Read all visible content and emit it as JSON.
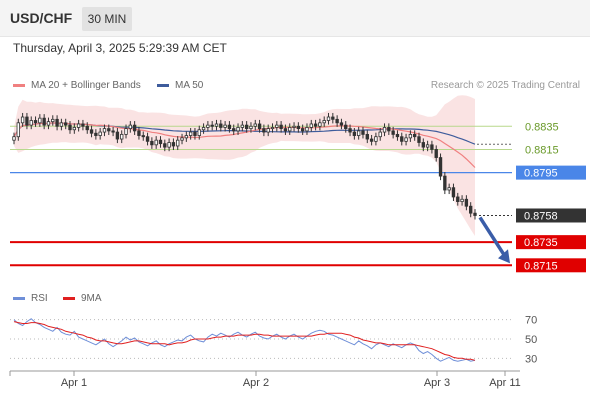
{
  "header": {
    "symbol": "USD/CHF",
    "timeframe": "30 MIN",
    "datetime": "Thursday, April 3, 2025 5:29:39 AM CET"
  },
  "legend": {
    "ma20_bb": "MA 20 + Bollinger Bands",
    "ma50": "MA 50",
    "credit": "Research © 2025 Trading Central",
    "rsi": "RSI",
    "ma9": "9MA"
  },
  "colors": {
    "bb_fill": "#f8dada",
    "ma20": "#f08080",
    "ma50": "#3e5c9c",
    "candle": "#333333",
    "blue_level": "#4a86e8",
    "red_level": "#e00000",
    "green_level": "#b8d88c",
    "arrow": "#3a5da8",
    "rsi": "#6f8fd8",
    "rsi_ma": "#e02020"
  },
  "chart_data": {
    "type": "candlestick",
    "x_ticks": [
      "Apr 1",
      "Apr 2",
      "Apr 3",
      "Apr 11"
    ],
    "price_ylim": [
      0.8698,
      0.8862
    ],
    "levels": [
      {
        "label": "0.8835",
        "value": 0.8835,
        "kind": "resistance-green"
      },
      {
        "label": "0.8815",
        "value": 0.8815,
        "kind": "resistance-green"
      },
      {
        "label": "0.8795",
        "value": 0.8795,
        "kind": "pivot-blue"
      },
      {
        "label": "0.8758",
        "value": 0.8758,
        "kind": "last-price"
      },
      {
        "label": "0.8735",
        "value": 0.8735,
        "kind": "target-red"
      },
      {
        "label": "0.8715",
        "value": 0.8715,
        "kind": "target-red"
      }
    ],
    "close_series": [
      0.8826,
      0.8838,
      0.8843,
      0.8836,
      0.884,
      0.8838,
      0.8842,
      0.8836,
      0.8839,
      0.8841,
      0.8835,
      0.8838,
      0.8836,
      0.8832,
      0.8834,
      0.8837,
      0.8835,
      0.8832,
      0.8829,
      0.8827,
      0.883,
      0.8833,
      0.8831,
      0.883,
      0.8824,
      0.8828,
      0.8833,
      0.8836,
      0.8831,
      0.8827,
      0.8826,
      0.8822,
      0.8819,
      0.8823,
      0.882,
      0.8817,
      0.8821,
      0.8818,
      0.8823,
      0.8825,
      0.8827,
      0.883,
      0.8827,
      0.8832,
      0.8834,
      0.8836,
      0.8835,
      0.8837,
      0.8834,
      0.8836,
      0.8833,
      0.8831,
      0.8834,
      0.8836,
      0.8833,
      0.8835,
      0.8837,
      0.8833,
      0.883,
      0.8833,
      0.8834,
      0.8836,
      0.8833,
      0.8831,
      0.8834,
      0.8835,
      0.8833,
      0.8831,
      0.8834,
      0.8837,
      0.8835,
      0.8838,
      0.884,
      0.8843,
      0.8841,
      0.8838,
      0.8836,
      0.8833,
      0.883,
      0.8827,
      0.8831,
      0.8828,
      0.8824,
      0.8822,
      0.8826,
      0.883,
      0.8834,
      0.8831,
      0.8828,
      0.8826,
      0.8822,
      0.8825,
      0.8828,
      0.8826,
      0.8821,
      0.8817,
      0.8819,
      0.8815,
      0.8808,
      0.8792,
      0.878,
      0.8782,
      0.8774,
      0.877,
      0.8772,
      0.8766,
      0.876,
      0.8758
    ],
    "price_x_index_range": [
      0,
      107
    ],
    "rsi": {
      "ylim": [
        20,
        80
      ],
      "ticks": [
        70,
        50,
        30
      ],
      "values": [
        70,
        66,
        64,
        68,
        71,
        67,
        65,
        62,
        60,
        58,
        62,
        57,
        55,
        54,
        58,
        52,
        50,
        48,
        46,
        44,
        47,
        50,
        45,
        42,
        45,
        48,
        52,
        49,
        51,
        47,
        45,
        43,
        46,
        48,
        44,
        42,
        45,
        47,
        49,
        48,
        52,
        54,
        50,
        48,
        47,
        52,
        55,
        53,
        56,
        54,
        52,
        55,
        57,
        54,
        52,
        55,
        57,
        53,
        51,
        50,
        53,
        55,
        52,
        50,
        53,
        55,
        52,
        50,
        53,
        56,
        58,
        59,
        58,
        55,
        54,
        52,
        50,
        48,
        46,
        44,
        48,
        45,
        43,
        40,
        44,
        46,
        44,
        42,
        45,
        43,
        41,
        44,
        46,
        44,
        38,
        35,
        37,
        34,
        30,
        27,
        29,
        31,
        28,
        27,
        28,
        29,
        27,
        28
      ],
      "ma_values": [
        68,
        67,
        66,
        66,
        67,
        67,
        66,
        65,
        63,
        62,
        61,
        60,
        58,
        57,
        56,
        55,
        54,
        52,
        51,
        49,
        48,
        48,
        47,
        46,
        45,
        45,
        46,
        47,
        48,
        48,
        47,
        46,
        45,
        45,
        45,
        45,
        44,
        45,
        46,
        46,
        47,
        49,
        50,
        50,
        50,
        50,
        51,
        52,
        52,
        53,
        53,
        53,
        54,
        54,
        54,
        54,
        55,
        55,
        54,
        54,
        53,
        53,
        53,
        53,
        53,
        53,
        53,
        53,
        53,
        53,
        54,
        55,
        55,
        56,
        56,
        56,
        56,
        55,
        54,
        52,
        51,
        49,
        48,
        47,
        46,
        46,
        45,
        44,
        44,
        44,
        44,
        44,
        44,
        44,
        43,
        42,
        41,
        40,
        38,
        36,
        34,
        33,
        31,
        30,
        30,
        29,
        29,
        28
      ]
    }
  }
}
